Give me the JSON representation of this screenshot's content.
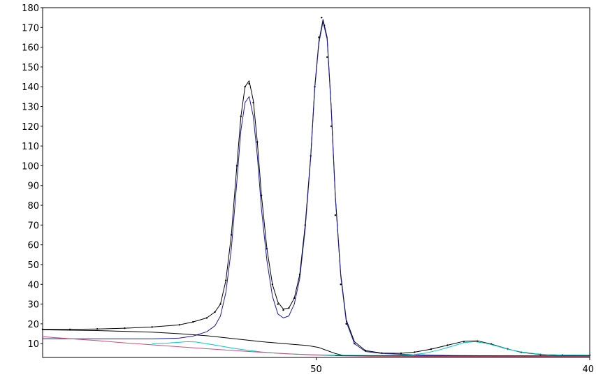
{
  "chart_data": {
    "type": "line",
    "title": "",
    "xlabel": "",
    "ylabel": "",
    "x_reversed": true,
    "xlim": [
      60,
      40
    ],
    "ylim": [
      3,
      180
    ],
    "x_ticks": [
      50,
      40
    ],
    "y_ticks": [
      10,
      20,
      30,
      40,
      50,
      60,
      70,
      80,
      90,
      100,
      110,
      120,
      130,
      140,
      150,
      160,
      170,
      180
    ],
    "grid": false,
    "legend": "none",
    "series": [
      {
        "kind": "points",
        "color": "#000000",
        "points": [
          [
            60,
            17.2
          ],
          [
            59,
            17.2
          ],
          [
            58,
            17.4
          ],
          [
            57,
            17.8
          ],
          [
            56,
            18.4
          ],
          [
            55,
            19.5
          ],
          [
            54.5,
            21
          ],
          [
            54,
            23
          ],
          [
            53.7,
            26
          ],
          [
            53.5,
            30
          ],
          [
            53.3,
            42
          ],
          [
            53.1,
            65
          ],
          [
            52.9,
            100
          ],
          [
            52.75,
            125
          ],
          [
            52.6,
            140
          ],
          [
            52.45,
            141.5
          ],
          [
            52.3,
            132
          ],
          [
            52.15,
            112
          ],
          [
            52.0,
            85
          ],
          [
            51.8,
            58
          ],
          [
            51.6,
            40
          ],
          [
            51.4,
            30
          ],
          [
            51.2,
            27
          ],
          [
            51.0,
            28
          ],
          [
            50.8,
            33
          ],
          [
            50.6,
            45
          ],
          [
            50.4,
            70
          ],
          [
            50.2,
            105
          ],
          [
            50.05,
            140
          ],
          [
            49.9,
            165
          ],
          [
            49.8,
            175
          ],
          [
            49.7,
            171
          ],
          [
            49.6,
            155
          ],
          [
            49.45,
            120
          ],
          [
            49.3,
            75
          ],
          [
            49.1,
            40
          ],
          [
            48.9,
            20
          ],
          [
            48.6,
            10
          ],
          [
            48.2,
            6.5
          ],
          [
            47.6,
            5.2
          ],
          [
            46.9,
            5.1
          ],
          [
            46.4,
            5.7
          ],
          [
            45.8,
            7.2
          ],
          [
            45.2,
            9.2
          ],
          [
            44.6,
            11
          ],
          [
            44.1,
            11.2
          ],
          [
            43.6,
            9.8
          ],
          [
            43.0,
            7.3
          ],
          [
            42.5,
            5.6
          ],
          [
            41.8,
            4.5
          ],
          [
            41.0,
            4.2
          ],
          [
            40,
            4.1
          ]
        ]
      },
      {
        "kind": "line",
        "color": "#000000",
        "points": [
          [
            60,
            17.2
          ],
          [
            59,
            17.2
          ],
          [
            58,
            17.4
          ],
          [
            57,
            17.8
          ],
          [
            56,
            18.4
          ],
          [
            55,
            19.5
          ],
          [
            54.5,
            21
          ],
          [
            54,
            23
          ],
          [
            53.7,
            26
          ],
          [
            53.5,
            30
          ],
          [
            53.3,
            42
          ],
          [
            53.1,
            65
          ],
          [
            52.9,
            100
          ],
          [
            52.75,
            125
          ],
          [
            52.6,
            140
          ],
          [
            52.45,
            143
          ],
          [
            52.3,
            133
          ],
          [
            52.15,
            112
          ],
          [
            52.0,
            85
          ],
          [
            51.8,
            58
          ],
          [
            51.6,
            40
          ],
          [
            51.4,
            31
          ],
          [
            51.2,
            27.5
          ],
          [
            51.0,
            28
          ],
          [
            50.8,
            33
          ],
          [
            50.6,
            45
          ],
          [
            50.4,
            70
          ],
          [
            50.2,
            105
          ],
          [
            50.05,
            140
          ],
          [
            49.9,
            163
          ],
          [
            49.75,
            174
          ],
          [
            49.6,
            165
          ],
          [
            49.45,
            130
          ],
          [
            49.3,
            85
          ],
          [
            49.1,
            45
          ],
          [
            48.9,
            22
          ],
          [
            48.6,
            11
          ],
          [
            48.2,
            6.5
          ],
          [
            47.6,
            5.2
          ],
          [
            46.9,
            5.1
          ],
          [
            46.4,
            5.7
          ],
          [
            45.8,
            7.2
          ],
          [
            45.2,
            9.2
          ],
          [
            44.6,
            11.2
          ],
          [
            44.1,
            11.4
          ],
          [
            43.6,
            9.8
          ],
          [
            43.0,
            7.3
          ],
          [
            42.5,
            5.6
          ],
          [
            41.8,
            4.5
          ],
          [
            41.0,
            4.2
          ],
          [
            40,
            4.1
          ]
        ]
      },
      {
        "kind": "line",
        "color": "#1a1a9a",
        "points": [
          [
            60,
            12.5
          ],
          [
            58,
            12.4
          ],
          [
            56,
            12.4
          ],
          [
            55,
            12.8
          ],
          [
            54.5,
            13.8
          ],
          [
            54,
            16
          ],
          [
            53.7,
            19
          ],
          [
            53.5,
            24
          ],
          [
            53.3,
            36
          ],
          [
            53.1,
            58
          ],
          [
            52.9,
            92
          ],
          [
            52.75,
            118
          ],
          [
            52.6,
            132
          ],
          [
            52.45,
            135
          ],
          [
            52.3,
            125
          ],
          [
            52.15,
            105
          ],
          [
            52.0,
            78
          ],
          [
            51.8,
            52
          ],
          [
            51.6,
            34
          ],
          [
            51.4,
            25
          ],
          [
            51.2,
            23
          ],
          [
            51.0,
            24
          ],
          [
            50.8,
            30
          ],
          [
            50.6,
            43
          ],
          [
            50.4,
            68
          ],
          [
            50.2,
            104
          ],
          [
            50.05,
            139
          ],
          [
            49.9,
            162
          ],
          [
            49.75,
            173
          ],
          [
            49.6,
            164
          ],
          [
            49.45,
            129
          ],
          [
            49.3,
            84
          ],
          [
            49.1,
            44
          ],
          [
            48.9,
            21
          ],
          [
            48.6,
            10
          ],
          [
            48.2,
            6
          ],
          [
            47.6,
            5
          ],
          [
            46.9,
            4.6
          ],
          [
            46,
            4.2
          ],
          [
            45,
            4.0
          ],
          [
            44,
            3.9
          ],
          [
            42,
            3.8
          ],
          [
            40,
            3.8
          ]
        ]
      },
      {
        "kind": "line",
        "color": "#000000",
        "points": [
          [
            60,
            17
          ],
          [
            58,
            16.6
          ],
          [
            56,
            15.8
          ],
          [
            55,
            15
          ],
          [
            54,
            14
          ],
          [
            53,
            12.5
          ],
          [
            52,
            11
          ],
          [
            51,
            9.8
          ],
          [
            50.3,
            9
          ],
          [
            49.9,
            8
          ],
          [
            49.6,
            6.5
          ],
          [
            49.3,
            5
          ],
          [
            49,
            4
          ],
          [
            48,
            3.7
          ],
          [
            46,
            3.7
          ],
          [
            44,
            3.7
          ],
          [
            42,
            3.7
          ],
          [
            40,
            3.7
          ]
        ]
      },
      {
        "kind": "line",
        "color": "#00c8c8",
        "points": [
          [
            56,
            10
          ],
          [
            55.5,
            10.2
          ],
          [
            55,
            10.7
          ],
          [
            54.7,
            11
          ],
          [
            54.4,
            10.8
          ],
          [
            54,
            10
          ],
          [
            53.5,
            8.8
          ],
          [
            53,
            7.6
          ],
          [
            52.5,
            6.6
          ],
          [
            52,
            5.8
          ],
          [
            51.5,
            5.2
          ],
          [
            51,
            4.8
          ],
          [
            50,
            4.3
          ],
          [
            49,
            4.1
          ],
          [
            48,
            4.0
          ],
          [
            47,
            4.0
          ],
          [
            46.5,
            4.3
          ],
          [
            46,
            5.2
          ],
          [
            45.5,
            6.8
          ],
          [
            45,
            8.8
          ],
          [
            44.6,
            10.5
          ],
          [
            44.2,
            11
          ],
          [
            43.8,
            10.2
          ],
          [
            43.4,
            8.8
          ],
          [
            43,
            7.2
          ],
          [
            42.5,
            5.8
          ],
          [
            42,
            4.9
          ],
          [
            41.5,
            4.4
          ],
          [
            41,
            4.2
          ],
          [
            40,
            4.1
          ]
        ]
      },
      {
        "kind": "line",
        "color": "#c85078",
        "points": [
          [
            60,
            13.5
          ],
          [
            59,
            12.5
          ],
          [
            58,
            11.5
          ],
          [
            57,
            10.4
          ],
          [
            56,
            9.4
          ],
          [
            55,
            8.4
          ],
          [
            54,
            7.4
          ],
          [
            53,
            6.5
          ],
          [
            52,
            5.6
          ],
          [
            51,
            4.8
          ],
          [
            50,
            4.2
          ],
          [
            49,
            3.8
          ],
          [
            48,
            3.6
          ],
          [
            46,
            3.5
          ],
          [
            44,
            3.5
          ],
          [
            42,
            3.5
          ],
          [
            40,
            3.5
          ]
        ]
      },
      {
        "kind": "line",
        "color": "#5a0000",
        "points": [
          [
            49.3,
            3.9
          ],
          [
            48,
            3.8
          ],
          [
            46,
            3.8
          ],
          [
            44,
            3.8
          ],
          [
            42,
            3.8
          ],
          [
            40,
            3.8
          ]
        ]
      }
    ]
  }
}
